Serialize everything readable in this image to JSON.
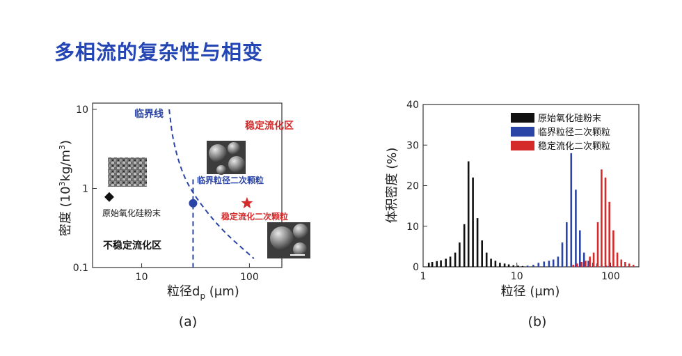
{
  "page": {
    "title": "多相流的复杂性与相变",
    "colors": {
      "title": "#2446b4",
      "blue": "#2a45a6",
      "red": "#d42a2a",
      "black": "#111111"
    }
  },
  "chart_data": [
    {
      "type": "scatter",
      "caption": "(a)",
      "xlabel_main": "粒径d",
      "xlabel_sub": "p",
      "xlabel_unit": " (μm)",
      "ylabel_pre": "密度 (10",
      "ylabel_sup": "3",
      "ylabel_post": "kg/m",
      "ylabel_sup2": "3",
      "ylabel_end": ")",
      "x_scale": "log",
      "y_scale": "log",
      "xlim": [
        3.5,
        200
      ],
      "ylim": [
        0.1,
        12
      ],
      "x_ticks": [
        {
          "v": 10,
          "label": "10"
        },
        {
          "v": 100,
          "label": "100"
        }
      ],
      "y_ticks": [
        {
          "v": 0.1,
          "label": "0.1"
        },
        {
          "v": 1,
          "label": "1"
        },
        {
          "v": 10,
          "label": "10"
        }
      ],
      "points": [
        {
          "name": "原始氧化硅粉末",
          "x": 5,
          "y": 0.78,
          "marker": "diamond",
          "color": "#111111"
        },
        {
          "name": "临界粒径二次颗粒",
          "x": 30,
          "y": 0.65,
          "marker": "circle",
          "color": "#2a45a6"
        },
        {
          "name": "稳定流化二次颗粒",
          "x": 95,
          "y": 0.65,
          "marker": "star",
          "color": "#d42a2a"
        }
      ],
      "critical_line_label": "临界线",
      "critical_line": [
        [
          18,
          10
        ],
        [
          19.5,
          4
        ],
        [
          24,
          1.5
        ],
        [
          32,
          0.75
        ],
        [
          55,
          0.3
        ],
        [
          110,
          0.13
        ]
      ],
      "vertical_line": {
        "x": 30,
        "y_from": 0.1,
        "y_to": 1.3
      },
      "region_labels": [
        {
          "text": "稳定流化区",
          "color": "#d42a2a"
        },
        {
          "text": "不稳定流化区",
          "color": "#111111"
        }
      ]
    },
    {
      "type": "bar",
      "caption": "(b)",
      "xlabel": "粒径 (μm)",
      "ylabel": "体积密度 (%)",
      "x_scale": "log",
      "xlim": [
        1,
        200
      ],
      "ylim": [
        0,
        40
      ],
      "x_ticks": [
        {
          "v": 1,
          "label": "1"
        },
        {
          "v": 10,
          "label": "10"
        },
        {
          "v": 100,
          "label": "100"
        }
      ],
      "y_ticks": [
        0,
        10,
        20,
        30,
        40
      ],
      "legend_position": "top-right",
      "series": [
        {
          "name": "原始氧化硅粉末",
          "color": "#111111",
          "x": [
            1.15,
            1.25,
            1.4,
            1.55,
            1.75,
            1.95,
            2.2,
            2.45,
            2.75,
            3.05,
            3.4,
            3.8,
            4.25,
            4.75,
            5.3,
            5.9,
            6.6,
            7.4,
            8.2,
            9.2,
            10.3,
            11.5
          ],
          "values": [
            1,
            1.2,
            1.4,
            1.6,
            2,
            2.5,
            3.5,
            6,
            10.5,
            26,
            22,
            12,
            6.5,
            3.5,
            2,
            1.5,
            1,
            0.8,
            0.6,
            0.4,
            0.3,
            0.2
          ]
        },
        {
          "name": "临界粒径二次颗粒",
          "color": "#2a45a6",
          "x": [
            13,
            15,
            17,
            19.5,
            22,
            24.5,
            27.5,
            30.5,
            34,
            38,
            42.5,
            47,
            52,
            58,
            65,
            72,
            80,
            90,
            100
          ],
          "values": [
            0.3,
            0.5,
            1,
            1.3,
            1.5,
            1.8,
            2.5,
            6,
            11,
            28,
            19,
            9,
            3.5,
            1.5,
            1,
            0.8,
            0.5,
            0.3,
            0.2
          ]
        },
        {
          "name": "稳定流化二次颗粒",
          "color": "#d42a2a",
          "x": [
            40,
            44,
            49,
            54,
            60,
            66,
            73,
            80,
            88,
            97,
            107,
            118,
            130,
            143,
            158,
            175
          ],
          "values": [
            0.5,
            0.8,
            1.2,
            1.5,
            2.5,
            3.5,
            11,
            24,
            22,
            16,
            9,
            3.5,
            1.8,
            1.2,
            0.8,
            0.5
          ]
        }
      ]
    }
  ]
}
